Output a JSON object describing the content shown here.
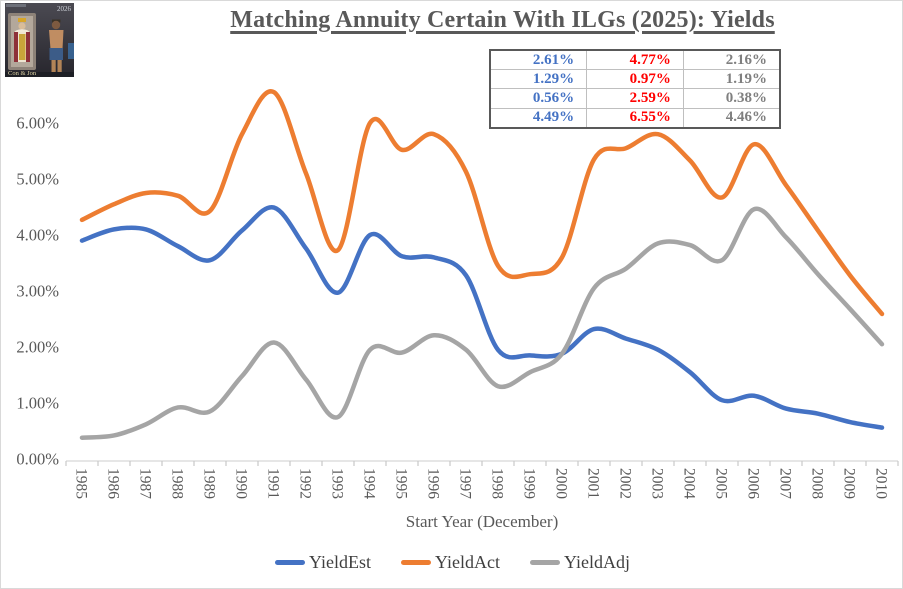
{
  "thumbnail": {
    "year_text": "2026",
    "caption": "Con & Jon"
  },
  "title": "Matching Annuity Certain With ILGs (2025): Yields",
  "stats_table": {
    "rows": [
      [
        "2.61%",
        "4.77%",
        "2.16%"
      ],
      [
        "1.29%",
        "0.97%",
        "1.19%"
      ],
      [
        "0.56%",
        "2.59%",
        "0.38%"
      ],
      [
        "4.49%",
        "6.55%",
        "4.46%"
      ]
    ],
    "col_colors": [
      "#4472C4",
      "#FF0000",
      "#7F7F7F"
    ]
  },
  "chart_data": {
    "type": "line",
    "title": "Matching Annuity Certain With ILGs (2025): Yields",
    "xlabel": "Start Year (December)",
    "ylabel": "",
    "ylim": [
      0,
      6.6
    ],
    "grid": false,
    "legend_position": "bottom",
    "smooth": true,
    "yticks": [
      "0.00%",
      "1.00%",
      "2.00%",
      "3.00%",
      "4.00%",
      "5.00%",
      "6.00%"
    ],
    "categories": [
      "1985",
      "1986",
      "1987",
      "1988",
      "1989",
      "1990",
      "1991",
      "1992",
      "1993",
      "1994",
      "1995",
      "1996",
      "1997",
      "1998",
      "1999",
      "2000",
      "2001",
      "2002",
      "2003",
      "2004",
      "2005",
      "2006",
      "2007",
      "2008",
      "2009",
      "2010"
    ],
    "series": [
      {
        "name": "YieldEst",
        "color": "#4472C4",
        "values": [
          3.9,
          4.1,
          4.1,
          3.8,
          3.55,
          4.08,
          4.49,
          3.76,
          2.97,
          4.0,
          3.62,
          3.6,
          3.28,
          1.95,
          1.85,
          1.88,
          2.32,
          2.15,
          1.95,
          1.55,
          1.05,
          1.13,
          0.9,
          0.81,
          0.66,
          0.56
        ]
      },
      {
        "name": "YieldAct",
        "color": "#ED7D31",
        "values": [
          4.27,
          4.55,
          4.75,
          4.7,
          4.43,
          5.8,
          6.55,
          5.1,
          3.73,
          6.0,
          5.52,
          5.8,
          5.13,
          3.45,
          3.3,
          3.6,
          5.35,
          5.55,
          5.8,
          5.33,
          4.67,
          5.62,
          4.89,
          4.08,
          3.28,
          2.59
        ]
      },
      {
        "name": "YieldAdj",
        "color": "#A5A5A5",
        "values": [
          0.38,
          0.42,
          0.62,
          0.92,
          0.85,
          1.48,
          2.08,
          1.42,
          0.75,
          1.95,
          1.9,
          2.21,
          1.95,
          1.3,
          1.55,
          1.88,
          3.05,
          3.4,
          3.85,
          3.82,
          3.55,
          4.46,
          3.96,
          3.3,
          2.68,
          2.05
        ]
      }
    ],
    "axis_color": "#d6d6d6",
    "tick_color": "#c9c9c9",
    "label_color": "#595959"
  }
}
